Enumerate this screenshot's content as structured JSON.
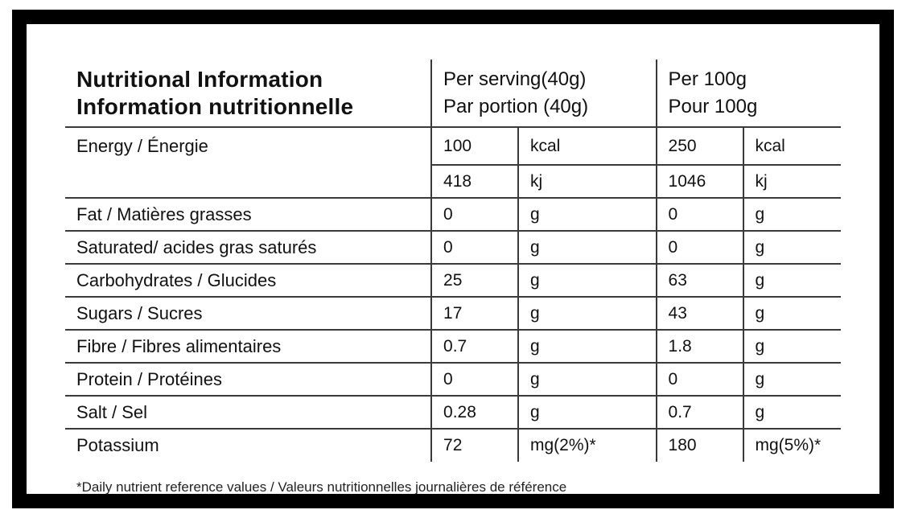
{
  "header": {
    "title_en": "Nutritional Information",
    "title_fr": "Information nutritionnelle",
    "col_serving_en": "Per serving(40g)",
    "col_serving_fr": "Par portion (40g)",
    "col_100g_en": "Per 100g",
    "col_100g_fr": "Pour 100g"
  },
  "rows": [
    {
      "label": "Energy / Énergie",
      "serving_value": "100",
      "serving_unit": "kcal",
      "per100g_value": "250",
      "per100g_unit": "kcal"
    },
    {
      "serving_value": "418",
      "serving_unit": "kj",
      "per100g_value": "1046",
      "per100g_unit": "kj"
    },
    {
      "label": "Fat / Matières grasses",
      "serving_value": "0",
      "serving_unit": "g",
      "per100g_value": "0",
      "per100g_unit": "g"
    },
    {
      "label": "Saturated/ acides gras saturés",
      "serving_value": "0",
      "serving_unit": "g",
      "per100g_value": "0",
      "per100g_unit": "g"
    },
    {
      "label": "Carbohydrates / Glucides",
      "serving_value": "25",
      "serving_unit": "g",
      "per100g_value": "63",
      "per100g_unit": "g"
    },
    {
      "label": "Sugars / Sucres",
      "serving_value": "17",
      "serving_unit": "g",
      "per100g_value": "43",
      "per100g_unit": "g"
    },
    {
      "label": "Fibre / Fibres alimentaires",
      "serving_value": "0.7",
      "serving_unit": "g",
      "per100g_value": "1.8",
      "per100g_unit": "g"
    },
    {
      "label": "Protein / Protéines",
      "serving_value": "0",
      "serving_unit": "g",
      "per100g_value": "0",
      "per100g_unit": "g"
    },
    {
      "label": "Salt / Sel",
      "serving_value": "0.28",
      "serving_unit": "g",
      "per100g_value": "0.7",
      "per100g_unit": "g"
    },
    {
      "label": "Potassium",
      "serving_value": "72",
      "serving_unit": "mg(2%)*",
      "per100g_value": "180",
      "per100g_unit": "mg(5%)*"
    }
  ],
  "footnote": "*Daily nutrient reference values / Valeurs nutritionnelles journalières de référence",
  "colors": {
    "frame": "#000000",
    "rule_line": "#3a3a3a",
    "text": "#111111",
    "background": "#ffffff"
  }
}
